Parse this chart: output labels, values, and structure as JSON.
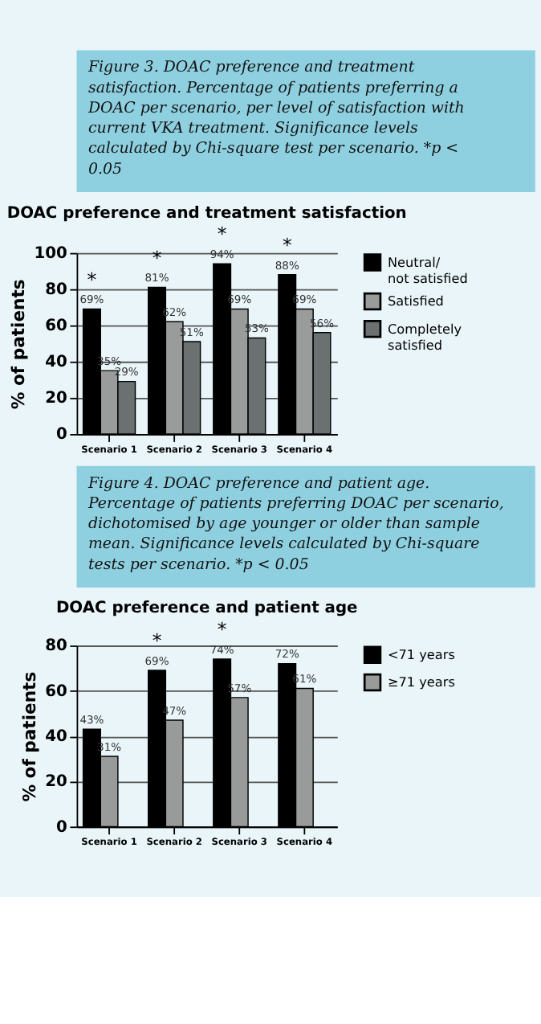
{
  "chart_data": [
    {
      "type": "bar",
      "title": "DOAC preference and treatment satisfaction",
      "ylabel": "% of patients",
      "annotations": [
        "Figure 3. DOAC preference and treatment satisfaction. Percentage of patients preferring a DOAC per scenario, per level of satisfaction with current VKA treatment. Significance levels calculated by Chi-square test per scenario. *p < 0.05",
        "*",
        "*",
        "*",
        "*"
      ],
      "categories": [
        "Scenario 1",
        "Scenario 2",
        "Scenario 3",
        "Scenario 4"
      ],
      "series": [
        {
          "name": "Neutral/ not satisfied",
          "color": "#000000",
          "values": [
            69,
            81,
            94,
            88
          ],
          "value_labels": [
            "69%",
            "81%",
            "94%",
            "88%"
          ]
        },
        {
          "name": "Satisfied",
          "color": "#9a9c9c",
          "values": [
            35,
            62,
            69,
            69
          ],
          "value_labels": [
            "35%",
            "62%",
            "69%",
            "69%"
          ]
        },
        {
          "name": "Completely satisfied",
          "color": "#6b7070",
          "values": [
            29,
            51,
            53,
            56
          ],
          "value_labels": [
            "29%",
            "51%",
            "53%",
            "56%"
          ]
        }
      ],
      "ylim": [
        0,
        100
      ],
      "yticks": [
        0,
        20,
        40,
        60,
        80,
        100
      ],
      "grid": "y",
      "legend": "right"
    },
    {
      "type": "bar",
      "title": "DOAC preference and patient age",
      "ylabel": "% of patients",
      "annotations": [
        "Figure 4. DOAC preference and patient age. Percentage of patients preferring DOAC per scenario, dichotomised by age younger or older than sample mean. Significance levels calculated by Chi-square tests per scenario. *p < 0.05",
        "*",
        "*"
      ],
      "categories": [
        "Scenario 1",
        "Scenario 2",
        "Scenario 3",
        "Scenario 4"
      ],
      "series": [
        {
          "name": "<71 years",
          "color": "#000000",
          "values": [
            43,
            69,
            74,
            72
          ],
          "value_labels": [
            "43%",
            "69%",
            "74%",
            "72%"
          ]
        },
        {
          "name": "≥71 years",
          "color": "#999b9b",
          "values": [
            31,
            47,
            57,
            61
          ],
          "value_labels": [
            "31%",
            "47%",
            "57%",
            "61%"
          ]
        }
      ],
      "ylim": [
        0,
        80
      ],
      "yticks": [
        0,
        20,
        40,
        60,
        80
      ],
      "grid": "y",
      "legend": "right"
    }
  ]
}
